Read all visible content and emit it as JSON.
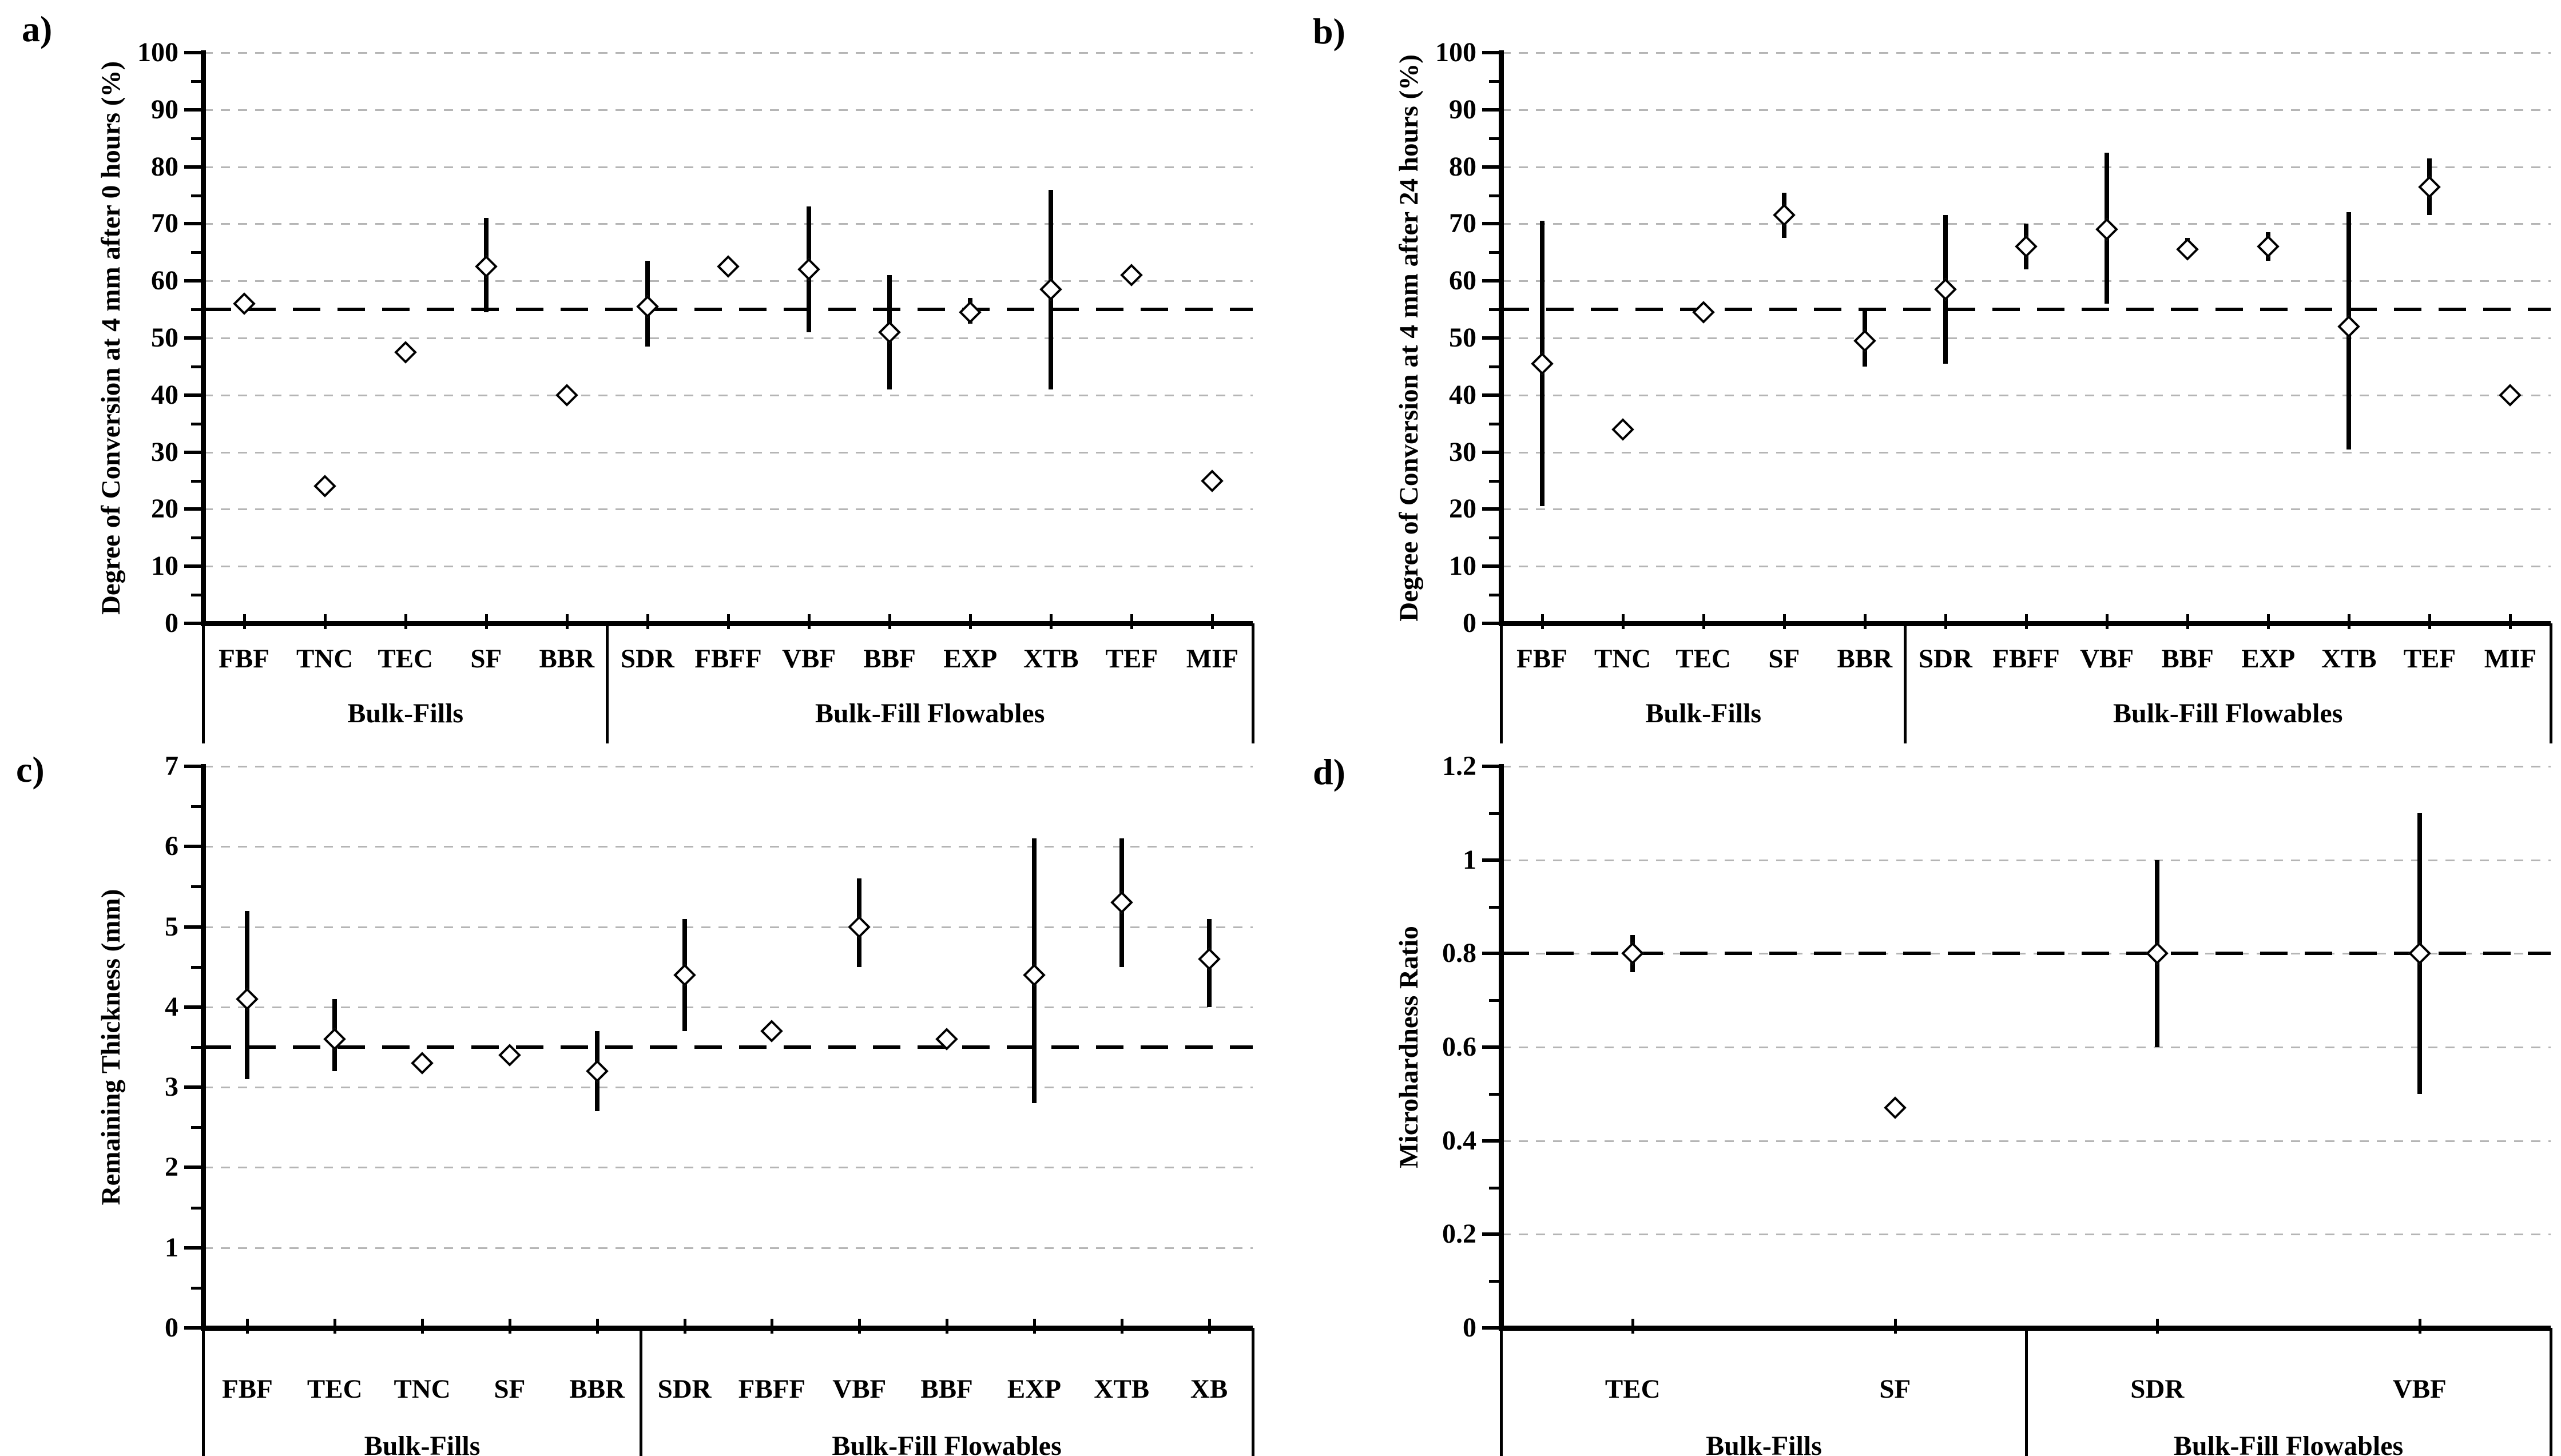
{
  "figure": {
    "background": "#ffffff",
    "text_color": "#000000",
    "grid_color": "#b5b5b5",
    "reference_line_color": "#000000",
    "marker_style": "open-diamond",
    "error_bar_style": "vertical-line-no-caps"
  },
  "chart_data": [
    {
      "type": "scatter",
      "panel_label": "a)",
      "title": "",
      "xlabel": "",
      "ylabel": "Degree of Conversion at 4 mm after 0 hours (%)",
      "ylim": [
        0,
        100
      ],
      "ytick_step": 10,
      "ytick_labels": [
        "0",
        "10",
        "20",
        "30",
        "40",
        "50",
        "60",
        "70",
        "80",
        "90",
        "100"
      ],
      "reference_line": 55,
      "grid": "horizontal-dashed",
      "legend": "none",
      "groups": [
        {
          "label": "Bulk-Fills",
          "categories": [
            "FBF",
            "TNC",
            "TEC",
            "SF",
            "BBR"
          ]
        },
        {
          "label": "Bulk-Fill Flowables",
          "categories": [
            "SDR",
            "FBFF",
            "VBF",
            "BBF",
            "EXP",
            "XTB",
            "TEF",
            "MIF"
          ]
        }
      ],
      "points": [
        {
          "category": "FBF",
          "mean": 56,
          "low": null,
          "high": null
        },
        {
          "category": "TNC",
          "mean": 24,
          "low": null,
          "high": null
        },
        {
          "category": "TEC",
          "mean": 47.5,
          "low": null,
          "high": null
        },
        {
          "category": "SF",
          "mean": 62.5,
          "low": 54.5,
          "high": 71
        },
        {
          "category": "BBR",
          "mean": 40,
          "low": null,
          "high": null
        },
        {
          "category": "SDR",
          "mean": 55.5,
          "low": 48.5,
          "high": 63.5
        },
        {
          "category": "FBFF",
          "mean": 62.5,
          "low": null,
          "high": null
        },
        {
          "category": "VBF",
          "mean": 62,
          "low": 51,
          "high": 73
        },
        {
          "category": "BBF",
          "mean": 51,
          "low": 41,
          "high": 61
        },
        {
          "category": "EXP",
          "mean": 54.5,
          "low": 52.5,
          "high": 57
        },
        {
          "category": "XTB",
          "mean": 58.5,
          "low": 41,
          "high": 76
        },
        {
          "category": "TEF",
          "mean": 61,
          "low": null,
          "high": null
        },
        {
          "category": "MIF",
          "mean": 25,
          "low": null,
          "high": null
        }
      ]
    },
    {
      "type": "scatter",
      "panel_label": "b)",
      "title": "",
      "xlabel": "",
      "ylabel": "Degree of Conversion at 4 mm after 24 hours (%)",
      "ylim": [
        0,
        100
      ],
      "ytick_step": 10,
      "ytick_labels": [
        "0",
        "10",
        "20",
        "30",
        "40",
        "50",
        "60",
        "70",
        "80",
        "90",
        "100"
      ],
      "reference_line": 55,
      "grid": "horizontal-dashed",
      "legend": "none",
      "groups": [
        {
          "label": "Bulk-Fills",
          "categories": [
            "FBF",
            "TNC",
            "TEC",
            "SF",
            "BBR"
          ]
        },
        {
          "label": "Bulk-Fill Flowables",
          "categories": [
            "SDR",
            "FBFF",
            "VBF",
            "BBF",
            "EXP",
            "XTB",
            "TEF",
            "MIF"
          ]
        }
      ],
      "points": [
        {
          "category": "FBF",
          "mean": 45.5,
          "low": 20.5,
          "high": 70.5
        },
        {
          "category": "TNC",
          "mean": 34,
          "low": null,
          "high": null
        },
        {
          "category": "TEC",
          "mean": 54.5,
          "low": 53.5,
          "high": 55.5
        },
        {
          "category": "SF",
          "mean": 71.5,
          "low": 67.5,
          "high": 75.5
        },
        {
          "category": "BBR",
          "mean": 49.5,
          "low": 45,
          "high": 55
        },
        {
          "category": "SDR",
          "mean": 58.5,
          "low": 45.5,
          "high": 71.5
        },
        {
          "category": "FBFF",
          "mean": 66,
          "low": 62,
          "high": 70
        },
        {
          "category": "VBF",
          "mean": 69,
          "low": 56,
          "high": 82.5
        },
        {
          "category": "BBF",
          "mean": 65.5,
          "low": 64,
          "high": 67.5
        },
        {
          "category": "EXP",
          "mean": 66,
          "low": 63.5,
          "high": 68.5
        },
        {
          "category": "XTB",
          "mean": 52,
          "low": 30.5,
          "high": 72
        },
        {
          "category": "TEF",
          "mean": 76.5,
          "low": 71.5,
          "high": 81.5
        },
        {
          "category": "MIF",
          "mean": 40,
          "low": null,
          "high": null
        }
      ]
    },
    {
      "type": "scatter",
      "panel_label": "c)",
      "title": "",
      "xlabel": "",
      "ylabel": "Remaining Thickness (mm)",
      "ylim": [
        0,
        7
      ],
      "ytick_step": 1,
      "ytick_labels": [
        "0",
        "1",
        "2",
        "3",
        "4",
        "5",
        "6",
        "7"
      ],
      "reference_line": 3.5,
      "grid": "horizontal-dashed",
      "legend": "none",
      "groups": [
        {
          "label": "Bulk-Fills",
          "categories": [
            "FBF",
            "TEC",
            "TNC",
            "SF",
            "BBR"
          ]
        },
        {
          "label": "Bulk-Fill Flowables",
          "categories": [
            "SDR",
            "FBFF",
            "VBF",
            "BBF",
            "EXP",
            "XTB",
            "XB"
          ]
        }
      ],
      "points": [
        {
          "category": "FBF",
          "mean": 4.1,
          "low": 3.1,
          "high": 5.2
        },
        {
          "category": "TEC",
          "mean": 3.6,
          "low": 3.2,
          "high": 4.1
        },
        {
          "category": "TNC",
          "mean": 3.3,
          "low": null,
          "high": null
        },
        {
          "category": "SF",
          "mean": 3.4,
          "low": null,
          "high": null
        },
        {
          "category": "BBR",
          "mean": 3.2,
          "low": 2.7,
          "high": 3.7
        },
        {
          "category": "SDR",
          "mean": 4.4,
          "low": 3.7,
          "high": 5.1
        },
        {
          "category": "FBFF",
          "mean": 3.7,
          "low": null,
          "high": null
        },
        {
          "category": "VBF",
          "mean": 5.0,
          "low": 4.5,
          "high": 5.6
        },
        {
          "category": "BBF",
          "mean": 3.6,
          "low": null,
          "high": null
        },
        {
          "category": "EXP",
          "mean": 4.4,
          "low": 2.8,
          "high": 6.1
        },
        {
          "category": "XTB",
          "mean": 5.3,
          "low": 4.5,
          "high": 6.1
        },
        {
          "category": "XB",
          "mean": 4.6,
          "low": 4.0,
          "high": 5.1
        }
      ]
    },
    {
      "type": "scatter",
      "panel_label": "d)",
      "title": "",
      "xlabel": "",
      "ylabel": "Microhardness Ratio",
      "ylim": [
        0,
        1.2
      ],
      "ytick_step": 0.2,
      "ytick_labels": [
        "0",
        "0.2",
        "0.4",
        "0.6",
        "0.8",
        "1",
        "1.2"
      ],
      "reference_line": 0.8,
      "grid": "horizontal-dashed",
      "legend": "none",
      "groups": [
        {
          "label": "Bulk-Fills",
          "categories": [
            "TEC",
            "SF"
          ]
        },
        {
          "label": "Bulk-Fill Flowables",
          "categories": [
            "SDR",
            "VBF"
          ]
        }
      ],
      "points": [
        {
          "category": "TEC",
          "mean": 0.8,
          "low": 0.76,
          "high": 0.84
        },
        {
          "category": "SF",
          "mean": 0.47,
          "low": null,
          "high": null
        },
        {
          "category": "SDR",
          "mean": 0.8,
          "low": 0.6,
          "high": 1.0
        },
        {
          "category": "VBF",
          "mean": 0.8,
          "low": 0.5,
          "high": 1.1
        }
      ]
    }
  ]
}
